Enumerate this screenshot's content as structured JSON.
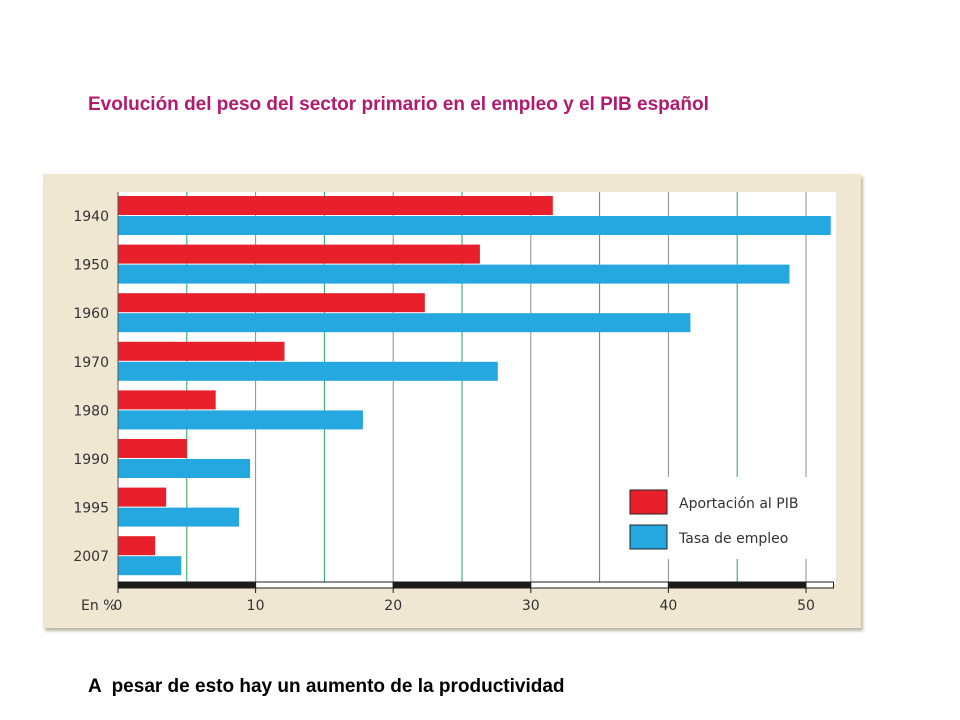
{
  "title": "Evolución del peso del sector primario en el empleo y el PIB español",
  "footer_text": "A  pesar de esto hay un aumento de la productividad",
  "chart_data": {
    "type": "bar",
    "orientation": "horizontal",
    "title": "",
    "xlabel": "En %",
    "ylabel": "",
    "xlim": [
      0,
      52
    ],
    "xticks": [
      0,
      10,
      20,
      30,
      40,
      50
    ],
    "categories": [
      "1940",
      "1950",
      "1960",
      "1970",
      "1980",
      "1990",
      "1995",
      "2007"
    ],
    "series": [
      {
        "name": "Aportación al PIB",
        "color": "#e8202c",
        "values": [
          31.6,
          26.3,
          22.3,
          12.1,
          7.1,
          5.0,
          3.5,
          2.7
        ]
      },
      {
        "name": "Tasa de empleo",
        "color": "#25a7e0",
        "values": [
          51.8,
          48.8,
          41.6,
          27.6,
          17.8,
          9.6,
          8.8,
          4.6
        ]
      }
    ],
    "legend_position": "bottom-right",
    "grid": true
  }
}
